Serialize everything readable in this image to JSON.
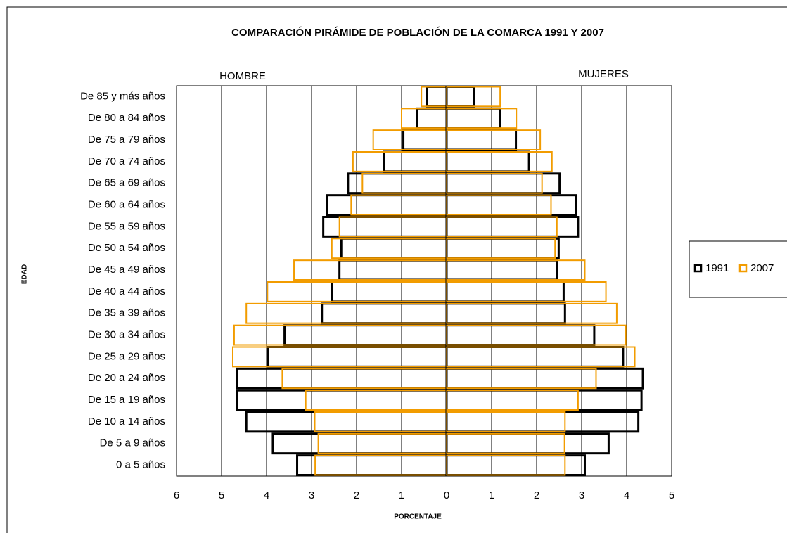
{
  "chart_data": {
    "type": "pyramid",
    "title": "COMPARACIÓN PIRÁMIDE DE POBLACIÓN DE LA COMARCA 1991 Y 2007",
    "left_label": "HOMBRE",
    "right_label": "MUJERES",
    "x_label": "PORCENTAJE",
    "y_label": "EDAD",
    "categories": [
      "De 85 y más años",
      "De 80 a 84 años",
      "De 75 a 79 años",
      "De 70 a 74 años",
      "De 65 a 69 años",
      "De 60 a 64 años",
      "De 55 a 59 años",
      "De 50 a 54 años",
      "De 45 a 49 años",
      "De 40 a 44 años",
      "De 35 a 39 años",
      "De 30 a 34 años",
      "De 25 a 29 años",
      "De 20 a 24 años",
      "De 15 a 19 años",
      "De 10 a 14 años",
      "De 5 a 9 años",
      "0 a 5 años"
    ],
    "series": [
      {
        "name": "1991",
        "color": "#000000",
        "side": "left",
        "values": [
          -0.44,
          -0.66,
          -0.96,
          -1.39,
          -2.19,
          -2.65,
          -2.74,
          -2.34,
          -2.38,
          -2.54,
          -2.77,
          -3.6,
          -3.97,
          -4.66,
          -4.66,
          -4.45,
          -3.86,
          -3.32
        ]
      },
      {
        "name": "2007",
        "color": "#f29c00",
        "side": "left",
        "values": [
          -0.56,
          -1.0,
          -1.63,
          -2.08,
          -1.87,
          -2.12,
          -2.38,
          -2.55,
          -3.39,
          -3.98,
          -4.45,
          -4.72,
          -4.75,
          -3.65,
          -3.13,
          -2.93,
          -2.85,
          -2.92
        ]
      },
      {
        "name": "1991",
        "color": "#000000",
        "side": "right",
        "values": [
          0.61,
          1.18,
          1.54,
          1.83,
          2.51,
          2.87,
          2.92,
          2.49,
          2.45,
          2.6,
          2.63,
          3.28,
          3.92,
          4.36,
          4.33,
          4.26,
          3.6,
          3.07
        ]
      },
      {
        "name": "2007",
        "color": "#f29c00",
        "side": "right",
        "values": [
          1.19,
          1.55,
          2.08,
          2.34,
          2.12,
          2.32,
          2.45,
          2.41,
          3.07,
          3.54,
          3.78,
          3.98,
          4.18,
          3.32,
          2.92,
          2.63,
          2.62,
          2.63
        ]
      }
    ],
    "xlim": [
      -6,
      5
    ],
    "xticks": [
      {
        "value": -6,
        "label": "6"
      },
      {
        "value": -5,
        "label": "5"
      },
      {
        "value": -4,
        "label": "4"
      },
      {
        "value": -3,
        "label": "3"
      },
      {
        "value": -2,
        "label": "2"
      },
      {
        "value": -1,
        "label": "1"
      },
      0,
      1,
      2,
      3,
      4,
      5
    ],
    "grid": true
  }
}
